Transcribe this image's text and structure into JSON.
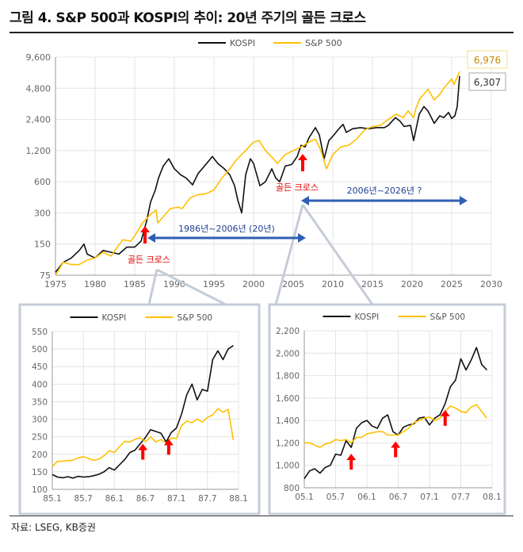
{
  "title": "그림 4. S&P 500과 KOSPI의 추이: 20년 주기의 골든 크로스",
  "source": "자료: LSEG, KB증권",
  "colors": {
    "kospi": "#111111",
    "sp500": "#FFC000",
    "annotation_arrow": "#2F5EB5",
    "golden_cross_arrow": "#FF0000",
    "inset_border": "#C5CCD8"
  },
  "chart_data": [
    {
      "type": "line",
      "scale": "log",
      "legend": [
        "KOSPI",
        "S&P 500"
      ],
      "legend_position": "top",
      "xlim": [
        1975,
        2030
      ],
      "ylim": [
        75,
        9600
      ],
      "x_ticks": [
        "1975",
        "1980",
        "1985",
        "1990",
        "1995",
        "2000",
        "2005",
        "2010",
        "2015",
        "2020",
        "2025",
        "2030"
      ],
      "y_ticks": [
        "75",
        "150",
        "300",
        "600",
        "1,200",
        "2,400",
        "4,800",
        "9,600"
      ],
      "grid": true,
      "series": [
        {
          "name": "KOSPI",
          "x": [
            1975,
            1976,
            1977,
            1978,
            1978.6,
            1979,
            1980,
            1981,
            1982,
            1983,
            1984,
            1985,
            1985.8,
            1986.5,
            1987,
            1987.6,
            1988,
            1988.6,
            1989.3,
            1990,
            1990.8,
            1991.5,
            1992.3,
            1993,
            1993.8,
            1994.8,
            1995.5,
            1996.3,
            1997,
            1997.6,
            1998,
            1998.5,
            1999,
            1999.6,
            2000,
            2000.8,
            2001.5,
            2002.3,
            2002.8,
            2003.3,
            2004,
            2004.8,
            2005.5,
            2006,
            2006.5,
            2007,
            2007.8,
            2008.3,
            2008.9,
            2009.5,
            2010,
            2010.9,
            2011.3,
            2011.7,
            2012.5,
            2013.5,
            2014.5,
            2015.5,
            2016.5,
            2017,
            2017.9,
            2018.5,
            2019,
            2019.8,
            2020.2,
            2020.9,
            2021.5,
            2022,
            2022.8,
            2023.5,
            2024,
            2024.6,
            2025,
            2025.4,
            2025.7,
            2026
          ],
          "y": [
            80,
            100,
            110,
            130,
            150,
            120,
            110,
            130,
            125,
            120,
            140,
            140,
            160,
            250,
            380,
            500,
            650,
            850,
            1000,
            800,
            700,
            650,
            560,
            720,
            850,
            1050,
            900,
            800,
            700,
            550,
            400,
            300,
            700,
            1000,
            900,
            550,
            600,
            800,
            650,
            600,
            850,
            880,
            1050,
            1350,
            1300,
            1600,
            2000,
            1700,
            1000,
            1500,
            1650,
            2000,
            2150,
            1800,
            1950,
            2000,
            1950,
            2000,
            2000,
            2100,
            2500,
            2300,
            2050,
            2100,
            1500,
            2700,
            3200,
            2900,
            2200,
            2600,
            2500,
            2800,
            2450,
            2600,
            3200,
            6307
          ]
        },
        {
          "name": "S&P 500",
          "x": [
            1975,
            1976,
            1977,
            1978,
            1979,
            1980,
            1981,
            1982,
            1982.8,
            1983.5,
            1984.5,
            1985,
            1986,
            1987,
            1987.7,
            1987.9,
            1988.5,
            1989.5,
            1990.5,
            1991,
            1992,
            1993,
            1994,
            1995,
            1996,
            1997,
            1997.8,
            1998.5,
            1999,
            2000,
            2000.7,
            2001.5,
            2002.5,
            2003,
            2004,
            2005,
            2006,
            2007,
            2007.8,
            2008.5,
            2009.2,
            2010,
            2011,
            2012,
            2013,
            2014,
            2015,
            2016,
            2017,
            2018,
            2018.9,
            2019.5,
            2020.2,
            2020.5,
            2021,
            2022,
            2022.8,
            2023.5,
            2024,
            2025,
            2025.3,
            2025.7,
            2026
          ],
          "y": [
            75,
            100,
            95,
            95,
            105,
            110,
            125,
            115,
            140,
            165,
            160,
            180,
            240,
            290,
            320,
            240,
            270,
            330,
            340,
            330,
            420,
            450,
            460,
            500,
            650,
            800,
            970,
            1100,
            1200,
            1450,
            1500,
            1200,
            1000,
            900,
            1100,
            1200,
            1300,
            1450,
            1550,
            1200,
            800,
            1100,
            1300,
            1350,
            1550,
            1900,
            2050,
            2100,
            2400,
            2700,
            2500,
            2900,
            2500,
            3100,
            3800,
            4700,
            3700,
            4200,
            4800,
            5900,
            5200,
            6200,
            6976
          ]
        }
      ],
      "value_labels": {
        "sp500_last": "6,976",
        "kospi_last": "6,307"
      },
      "annotations": {
        "period_1": "1986년~2006년 (20년)",
        "period_2": "2006년~2026년 ?",
        "golden_cross_1": "골든 크로스",
        "golden_cross_2": "골든 크로스"
      },
      "golden_cross_years": [
        1986.3,
        2006.2
      ]
    },
    {
      "type": "line",
      "legend": [
        "KOSPI",
        "S&P 500"
      ],
      "legend_position": "top",
      "x_ticks": [
        "85.1",
        "85.7",
        "86.1",
        "86.7",
        "87.1",
        "87.7",
        "88.1"
      ],
      "y_ticks": [
        "100",
        "150",
        "200",
        "250",
        "300",
        "350",
        "400",
        "450",
        "500",
        "550"
      ],
      "ylim": [
        100,
        550
      ],
      "grid": true,
      "x_months": "1985.1–1988.1",
      "series": [
        {
          "name": "KOSPI",
          "x": [
            0,
            1,
            2,
            3,
            4,
            5,
            6,
            7,
            8,
            9,
            10,
            11,
            12,
            13,
            14,
            15,
            16,
            17,
            18,
            19,
            20,
            21,
            22,
            23,
            24,
            25,
            26,
            27,
            28,
            29,
            30,
            31,
            32,
            33,
            34,
            35
          ],
          "y": [
            142,
            135,
            133,
            136,
            132,
            137,
            135,
            136,
            139,
            143,
            150,
            162,
            155,
            170,
            185,
            205,
            212,
            230,
            248,
            270,
            265,
            260,
            235,
            262,
            275,
            315,
            370,
            400,
            355,
            385,
            380,
            470,
            495,
            470,
            500,
            510
          ]
        },
        {
          "name": "S&P 500",
          "x": [
            0,
            1,
            2,
            3,
            4,
            5,
            6,
            7,
            8,
            9,
            10,
            11,
            12,
            13,
            14,
            15,
            16,
            17,
            18,
            19,
            20,
            21,
            22,
            23,
            24,
            25,
            26,
            27,
            28,
            29,
            30,
            31,
            32,
            33,
            34,
            35
          ],
          "y": [
            165,
            180,
            180,
            182,
            183,
            190,
            193,
            188,
            183,
            186,
            196,
            210,
            205,
            222,
            237,
            235,
            243,
            247,
            236,
            250,
            235,
            242,
            232,
            246,
            245,
            282,
            295,
            290,
            300,
            292,
            305,
            312,
            330,
            320,
            328,
            240
          ]
        }
      ],
      "golden_cross_months": [
        17.5,
        22.5
      ]
    },
    {
      "type": "line",
      "legend": [
        "KOSPI",
        "S&P 500"
      ],
      "legend_position": "top",
      "x_ticks": [
        "05.1",
        "05.7",
        "06.1",
        "06.7",
        "07.1",
        "07.7",
        "08.1"
      ],
      "y_ticks": [
        "800",
        "1,000",
        "1,200",
        "1,400",
        "1,600",
        "1,800",
        "2,000",
        "2,200"
      ],
      "ylim": [
        800,
        2200
      ],
      "grid": true,
      "x_months": "2005.1–2008.1",
      "series": [
        {
          "name": "KOSPI",
          "x": [
            0,
            1,
            2,
            3,
            4,
            5,
            6,
            7,
            8,
            9,
            10,
            11,
            12,
            13,
            14,
            15,
            16,
            17,
            18,
            19,
            20,
            21,
            22,
            23,
            24,
            25,
            26,
            27,
            28,
            29,
            30,
            31,
            32,
            33,
            34,
            35
          ],
          "y": [
            880,
            950,
            970,
            930,
            980,
            1000,
            1100,
            1090,
            1220,
            1160,
            1330,
            1380,
            1400,
            1350,
            1330,
            1420,
            1450,
            1300,
            1270,
            1340,
            1360,
            1370,
            1420,
            1430,
            1360,
            1420,
            1450,
            1550,
            1700,
            1760,
            1950,
            1850,
            1940,
            2050,
            1900,
            1850
          ]
        },
        {
          "name": "S&P 500",
          "x": [
            0,
            1,
            2,
            3,
            4,
            5,
            6,
            7,
            8,
            9,
            10,
            11,
            12,
            13,
            14,
            15,
            16,
            17,
            18,
            19,
            20,
            21,
            22,
            23,
            24,
            25,
            26,
            27,
            28,
            29,
            30,
            31,
            32,
            33,
            34,
            35
          ],
          "y": [
            1200,
            1200,
            1180,
            1160,
            1190,
            1200,
            1230,
            1220,
            1230,
            1200,
            1250,
            1250,
            1280,
            1290,
            1300,
            1300,
            1270,
            1270,
            1270,
            1300,
            1330,
            1380,
            1400,
            1420,
            1430,
            1400,
            1420,
            1480,
            1530,
            1510,
            1480,
            1470,
            1520,
            1540,
            1480,
            1420
          ]
        }
      ],
      "golden_cross_months": [
        9,
        17.5,
        27
      ]
    }
  ]
}
